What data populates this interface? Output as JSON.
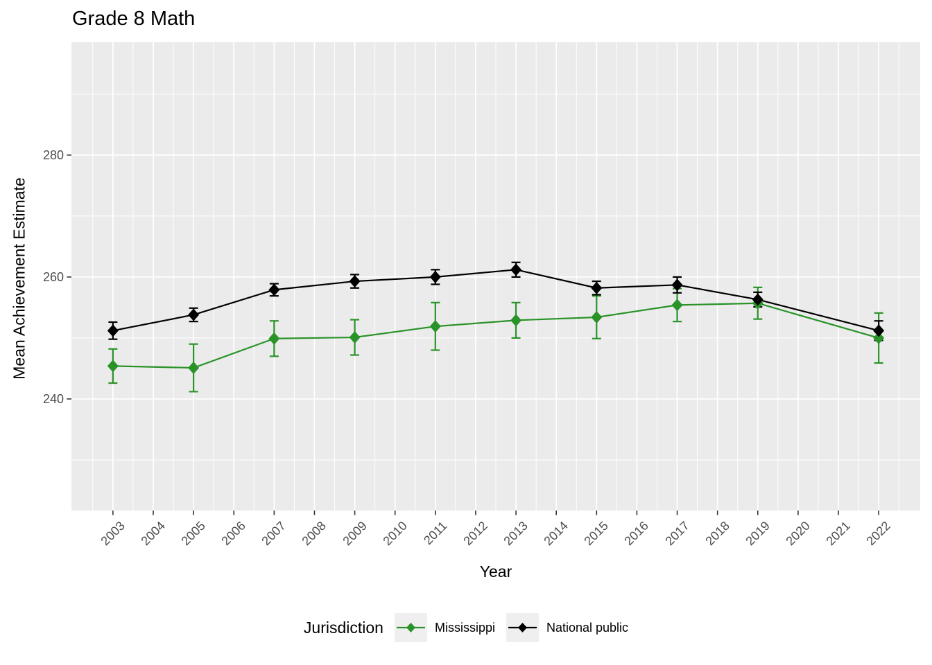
{
  "legend": {
    "title": "Jurisdiction"
  },
  "colors": {
    "panel_bg": "#ebebeb",
    "grid": "#ffffff",
    "tick_mark": "#333333",
    "tick_label": "#4d4d4d",
    "legend_key_bg": "#efefef",
    "mississippi_green": "#2A9328",
    "national_black": "#000000"
  },
  "chart_data": {
    "type": "line",
    "title": "Grade 8 Math",
    "xlabel": "Year",
    "ylabel": "Mean Achievement Estimate",
    "x": [
      2003,
      2005,
      2007,
      2009,
      2011,
      2013,
      2015,
      2017,
      2019,
      2022
    ],
    "series": [
      {
        "name": "Mississippi",
        "color": "#2A9328",
        "values": [
          245.4,
          245.1,
          249.9,
          250.1,
          251.9,
          252.9,
          253.4,
          255.4,
          255.7,
          250.0
        ],
        "error": [
          2.8,
          3.9,
          2.9,
          2.9,
          3.9,
          2.9,
          3.5,
          2.7,
          2.6,
          4.1
        ]
      },
      {
        "name": "National public",
        "color": "#000000",
        "values": [
          251.2,
          253.8,
          257.9,
          259.3,
          260.0,
          261.2,
          258.2,
          258.7,
          256.3,
          251.2
        ],
        "error": [
          1.4,
          1.1,
          1.0,
          1.1,
          1.2,
          1.2,
          1.1,
          1.3,
          1.2,
          1.6
        ]
      }
    ],
    "x_ticks": [
      2003,
      2004,
      2005,
      2006,
      2007,
      2008,
      2009,
      2010,
      2011,
      2012,
      2013,
      2014,
      2015,
      2016,
      2017,
      2018,
      2019,
      2020,
      2021,
      2022
    ],
    "y_ticks": [
      240,
      260,
      280
    ],
    "y_minor": [
      230,
      250,
      270,
      290
    ],
    "x_range": [
      2001.97,
      2023.03
    ],
    "y_range": [
      221.7,
      298.5
    ],
    "grid": true,
    "legend_position": "bottom",
    "marker": "diamond",
    "error_bars": true
  }
}
